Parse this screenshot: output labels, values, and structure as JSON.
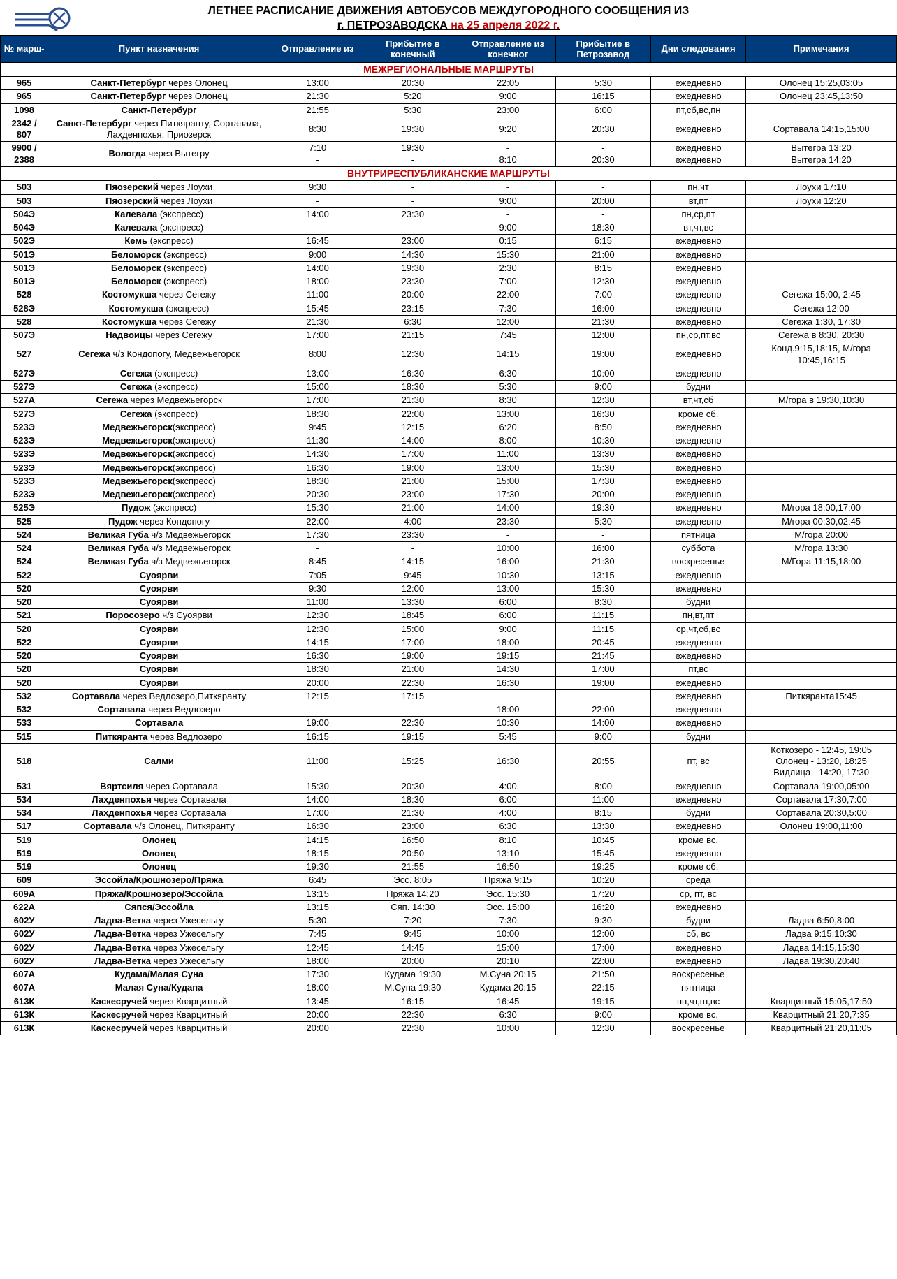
{
  "title": {
    "line1": "ЛЕТНЕЕ РАСПИСАНИЕ ДВИЖЕНИЯ АВТОБУСОВ МЕЖДУГОРОДНОГО СООБЩЕНИЯ ИЗ",
    "line2_prefix": "г. ПЕТРОЗАВОДСКА ",
    "line2_date": "на 25 апреля 2022 г."
  },
  "columns": [
    "№ марш-",
    "Пункт назначения",
    "Отправление из",
    "Прибытие в конечный",
    "Отправление из конечног",
    "Прибытие в Петрозавод",
    "Дни следования",
    "Примечания"
  ],
  "logo": {
    "color": "#2b4f8f"
  },
  "sections": [
    {
      "title": "МЕЖРЕГИОНАЛЬНЫЕ МАРШРУТЫ",
      "rows": [
        {
          "num": "965",
          "dest": "Санкт-Петербург",
          "via": " через Олонец",
          "dep": "13:00",
          "arr": "20:30",
          "dep2": "22:05",
          "arr2": "5:30",
          "days": "ежедневно",
          "notes": "Олонец 15:25,03:05"
        },
        {
          "num": "965",
          "dest": "Санкт-Петербург",
          "via": " через Олонец",
          "dep": "21:30",
          "arr": "5:20",
          "dep2": "9:00",
          "arr2": "16:15",
          "days": "ежедневно",
          "notes": "Олонец 23:45,13:50"
        },
        {
          "num": "1098",
          "dest": "Санкт-Петербург",
          "via": "",
          "dep": "21:55",
          "arr": "5:30",
          "dep2": "23:00",
          "arr2": "6:00",
          "days": "пт,сб,вс,пн",
          "notes": ""
        },
        {
          "num": "2342 / 807",
          "dest": "Санкт-Петербург",
          "via": " через Питкяранту, Сортавала, Лахденпохья, Приозерск",
          "dep": "8:30",
          "arr": "19:30",
          "dep2": "9:20",
          "arr2": "20:30",
          "days": "ежедневно",
          "notes": "Сортавала 14:15,15:00"
        },
        {
          "num": "9900 / 2388",
          "dest": "Вологда",
          "via": " через Вытегру",
          "dep": "7:10\n-",
          "arr": "19:30\n-",
          "dep2": "-\n8:10",
          "arr2": "-\n20:30",
          "days": "ежедневно\nежедневно",
          "notes": "Вытегра 13:20\nВытегра 14:20"
        }
      ]
    },
    {
      "title": "ВНУТРИРЕСПУБЛИКАНСКИЕ МАРШРУТЫ",
      "rows": [
        {
          "num": "503",
          "dest": "Пяозерский",
          "via": " через Лоухи",
          "dep": "9:30",
          "arr": "-",
          "dep2": "-",
          "arr2": "-",
          "days": "пн,чт",
          "notes": "Лоухи 17:10"
        },
        {
          "num": "503",
          "dest": "Пяозерский",
          "via": " через Лоухи",
          "dep": "-",
          "arr": "-",
          "dep2": "9:00",
          "arr2": "20:00",
          "days": "вт,пт",
          "notes": "Лоухи 12:20"
        },
        {
          "num": "504Э",
          "dest": "Калевала",
          "via": " (экспресс)",
          "dep": "14:00",
          "arr": "23:30",
          "dep2": "-",
          "arr2": "-",
          "days": "пн,ср,пт",
          "notes": ""
        },
        {
          "num": "504Э",
          "dest": "Калевала",
          "via": " (экспресс)",
          "dep": "-",
          "arr": "-",
          "dep2": "9:00",
          "arr2": "18:30",
          "days": "вт,чт,вс",
          "notes": ""
        },
        {
          "num": "502Э",
          "dest": "Кемь",
          "via": " (экспресс)",
          "dep": "16:45",
          "arr": "23:00",
          "dep2": "0:15",
          "arr2": "6:15",
          "days": "ежедневно",
          "notes": ""
        },
        {
          "num": "501Э",
          "dest": "Беломорск",
          "via": " (экспресс)",
          "dep": "9:00",
          "arr": "14:30",
          "dep2": "15:30",
          "arr2": "21:00",
          "days": "ежедневно",
          "notes": ""
        },
        {
          "num": "501Э",
          "dest": "Беломорск",
          "via": " (экспресс)",
          "dep": "14:00",
          "arr": "19:30",
          "dep2": "2:30",
          "arr2": "8:15",
          "days": "ежедневно",
          "notes": ""
        },
        {
          "num": "501Э",
          "dest": "Беломорск",
          "via": " (экспресс)",
          "dep": "18:00",
          "arr": "23:30",
          "dep2": "7:00",
          "arr2": "12:30",
          "days": "ежедневно",
          "notes": ""
        },
        {
          "num": "528",
          "dest": "Костомукша",
          "via": " через Сегежу",
          "dep": "11:00",
          "arr": "20:00",
          "dep2": "22:00",
          "arr2": "7:00",
          "days": "ежедневно",
          "notes": "Сегежа 15:00, 2:45"
        },
        {
          "num": "528Э",
          "dest": "Костомукша",
          "via": " (экспресс)",
          "dep": "15:45",
          "arr": "23:15",
          "dep2": "7:30",
          "arr2": "16:00",
          "days": "ежедневно",
          "notes": "Сегежа 12:00"
        },
        {
          "num": "528",
          "dest": "Костомукша",
          "via": " через Сегежу",
          "dep": "21:30",
          "arr": "6:30",
          "dep2": "12:00",
          "arr2": "21:30",
          "days": "ежедневно",
          "notes": "Сегежа 1:30, 17:30"
        },
        {
          "num": "507Э",
          "dest": "Надвоицы",
          "via": " через Сегежу",
          "dep": "17:00",
          "arr": "21:15",
          "dep2": "7:45",
          "arr2": "12:00",
          "days": "пн,ср,пт,вс",
          "notes": "Сегежа в 8:30, 20:30"
        },
        {
          "num": "527",
          "dest": "Сегежа",
          "via": " ч/з Кондопогу, Медвежьегорск",
          "dep": "8:00",
          "arr": "12:30",
          "dep2": "14:15",
          "arr2": "19:00",
          "days": "ежедневно",
          "notes": "Конд.9:15,18:15, М/гора 10:45,16:15"
        },
        {
          "num": "527Э",
          "dest": "Сегежа",
          "via": " (экспресс)",
          "dep": "13:00",
          "arr": "16:30",
          "dep2": "6:30",
          "arr2": "10:00",
          "days": "ежедневно",
          "notes": ""
        },
        {
          "num": "527Э",
          "dest": "Сегежа",
          "via": " (экспресс)",
          "dep": "15:00",
          "arr": "18:30",
          "dep2": "5:30",
          "arr2": "9:00",
          "days": "будни",
          "notes": ""
        },
        {
          "num": "527А",
          "dest": "Сегежа",
          "via": " через Медвежьегорск",
          "dep": "17:00",
          "arr": "21:30",
          "dep2": "8:30",
          "arr2": "12:30",
          "days": "вт,чт,сб",
          "notes": "М/гора в 19:30,10:30"
        },
        {
          "num": "527Э",
          "dest": "Сегежа",
          "via": " (экспресс)",
          "dep": "18:30",
          "arr": "22:00",
          "dep2": "13:00",
          "arr2": "16:30",
          "days": "кроме сб.",
          "notes": ""
        },
        {
          "num": "523Э",
          "dest": "Медвежьегорск",
          "via": "(экспресс)",
          "dep": "9:45",
          "arr": "12:15",
          "dep2": "6:20",
          "arr2": "8:50",
          "days": "ежедневно",
          "notes": ""
        },
        {
          "num": "523Э",
          "dest": "Медвежьегорск",
          "via": "(экспресс)",
          "dep": "11:30",
          "arr": "14:00",
          "dep2": "8:00",
          "arr2": "10:30",
          "days": "ежедневно",
          "notes": ""
        },
        {
          "num": "523Э",
          "dest": "Медвежьегорск",
          "via": "(экспресс)",
          "dep": "14:30",
          "arr": "17:00",
          "dep2": "11:00",
          "arr2": "13:30",
          "days": "ежедневно",
          "notes": ""
        },
        {
          "num": "523Э",
          "dest": "Медвежьегорск",
          "via": "(экспресс)",
          "dep": "16:30",
          "arr": "19:00",
          "dep2": "13:00",
          "arr2": "15:30",
          "days": "ежедневно",
          "notes": ""
        },
        {
          "num": "523Э",
          "dest": "Медвежьегорск",
          "via": "(экспресс)",
          "dep": "18:30",
          "arr": "21:00",
          "dep2": "15:00",
          "arr2": "17:30",
          "days": "ежедневно",
          "notes": ""
        },
        {
          "num": "523Э",
          "dest": "Медвежьегорск",
          "via": "(экспресс)",
          "dep": "20:30",
          "arr": "23:00",
          "dep2": "17:30",
          "arr2": "20:00",
          "days": "ежедневно",
          "notes": ""
        },
        {
          "num": "525Э",
          "dest": "Пудож",
          "via": " (экспресс)",
          "dep": "15:30",
          "arr": "21:00",
          "dep2": "14:00",
          "arr2": "19:30",
          "days": "ежедневно",
          "notes": "М/гора 18:00,17:00"
        },
        {
          "num": "525",
          "dest": "Пудож",
          "via": " через Кондопогу",
          "dep": "22:00",
          "arr": "4:00",
          "dep2": "23:30",
          "arr2": "5:30",
          "days": "ежедневно",
          "notes": "М/гора 00:30,02:45"
        },
        {
          "num": "524",
          "dest": "Великая Губа",
          "via": " ч/з Медвежьегорск",
          "dep": "17:30",
          "arr": "23:30",
          "dep2": "-",
          "arr2": "-",
          "days": "пятница",
          "notes": "М/гора 20:00"
        },
        {
          "num": "524",
          "dest": "Великая Губа",
          "via": " ч/з Медвежьегорск",
          "dep": "-",
          "arr": "-",
          "dep2": "10:00",
          "arr2": "16:00",
          "days": "суббота",
          "notes": "М/гора 13:30"
        },
        {
          "num": "524",
          "dest": "Великая Губа",
          "via": " ч/з Медвежьегорск",
          "dep": "8:45",
          "arr": "14:15",
          "dep2": "16:00",
          "arr2": "21:30",
          "days": "воскресенье",
          "notes": "М/Гора 11:15,18:00"
        },
        {
          "num": "522",
          "dest": "Суоярви",
          "via": "",
          "dep": "7:05",
          "arr": "9:45",
          "dep2": "10:30",
          "arr2": "13:15",
          "days": "ежедневно",
          "notes": ""
        },
        {
          "num": "520",
          "dest": "Суоярви",
          "via": "",
          "dep": "9:30",
          "arr": "12:00",
          "dep2": "13:00",
          "arr2": "15:30",
          "days": "ежедневно",
          "notes": ""
        },
        {
          "num": "520",
          "dest": "Суоярви",
          "via": "",
          "dep": "11:00",
          "arr": "13:30",
          "dep2": "6:00",
          "arr2": "8:30",
          "days": "будни",
          "notes": ""
        },
        {
          "num": "521",
          "dest": "Поросозеро",
          "via": " ч/з Суоярви",
          "dep": "12:30",
          "arr": "18:45",
          "dep2": "6:00",
          "arr2": "11:15",
          "days": "пн,вт,пт",
          "notes": ""
        },
        {
          "num": "520",
          "dest": "Суоярви",
          "via": "",
          "dep": "12:30",
          "arr": "15:00",
          "dep2": "9:00",
          "arr2": "11:15",
          "days": "ср,чт,сб,вс",
          "notes": ""
        },
        {
          "num": "522",
          "dest": "Суоярви",
          "via": "",
          "dep": "14:15",
          "arr": "17:00",
          "dep2": "18:00",
          "arr2": "20:45",
          "days": "ежедневно",
          "notes": ""
        },
        {
          "num": "520",
          "dest": "Суоярви",
          "via": "",
          "dep": "16:30",
          "arr": "19:00",
          "dep2": "19:15",
          "arr2": "21:45",
          "days": "ежедневно",
          "notes": ""
        },
        {
          "num": "520",
          "dest": "Суоярви",
          "via": "",
          "dep": "18:30",
          "arr": "21:00",
          "dep2": "14:30",
          "arr2": "17:00",
          "days": "пт,вс",
          "notes": ""
        },
        {
          "num": "520",
          "dest": "Суоярви",
          "via": "",
          "dep": "20:00",
          "arr": "22:30",
          "dep2": "16:30",
          "arr2": "19:00",
          "days": "ежедневно",
          "notes": ""
        },
        {
          "num": "532",
          "dest": "Сортавала",
          "via": " через Ведлозеро,Питкяранту",
          "dep": "12:15",
          "arr": "17:15",
          "dep2": "",
          "arr2": "",
          "days": "ежедневно",
          "notes": "Питкяранта15:45"
        },
        {
          "num": "532",
          "dest": "Сортавала",
          "via": " через Ведлозеро",
          "dep": "-",
          "arr": "-",
          "dep2": "18:00",
          "arr2": "22:00",
          "days": "ежедневно",
          "notes": ""
        },
        {
          "num": "533",
          "dest": "Сортавала",
          "via": "",
          "dep": "19:00",
          "arr": "22:30",
          "dep2": "10:30",
          "arr2": "14:00",
          "days": "ежедневно",
          "notes": ""
        },
        {
          "num": "515",
          "dest": "Питкяранта",
          "via": " через Ведлозеро",
          "dep": "16:15",
          "arr": "19:15",
          "dep2": "5:45",
          "arr2": "9:00",
          "days": "будни",
          "notes": ""
        },
        {
          "num": "518",
          "dest": "Салми",
          "via": "",
          "dep": "11:00",
          "arr": "15:25",
          "dep2": "16:30",
          "arr2": "20:55",
          "days": "пт, вс",
          "notes": "Коткозеро - 12:45, 19:05\nОлонец - 13:20, 18:25\nВидлица - 14:20, 17:30"
        },
        {
          "num": "531",
          "dest": "Вяртсиля",
          "via": " через Сортавала",
          "dep": "15:30",
          "arr": "20:30",
          "dep2": "4:00",
          "arr2": "8:00",
          "days": "ежедневно",
          "notes": "Сортавала 19:00,05:00"
        },
        {
          "num": "534",
          "dest": "Лахденпохья",
          "via": " через Сортавала",
          "dep": "14:00",
          "arr": "18:30",
          "dep2": "6:00",
          "arr2": "11:00",
          "days": "ежедневно",
          "notes": "Сортавала 17:30,7:00"
        },
        {
          "num": "534",
          "dest": "Лахденпохья",
          "via": " через Сортавала",
          "dep": "17:00",
          "arr": "21:30",
          "dep2": "4:00",
          "arr2": "8:15",
          "days": "будни",
          "notes": "Сортавала 20:30,5:00"
        },
        {
          "num": "517",
          "dest": "Сортавала",
          "via": " ч/з Олонец, Питкяранту",
          "dep": "16:30",
          "arr": "23:00",
          "dep2": "6:30",
          "arr2": "13:30",
          "days": "ежедневно",
          "notes": "Олонец 19:00,11:00"
        },
        {
          "num": "519",
          "dest": "Олонец",
          "via": "",
          "dep": "14:15",
          "arr": "16:50",
          "dep2": "8:10",
          "arr2": "10:45",
          "days": "кроме вс.",
          "notes": ""
        },
        {
          "num": "519",
          "dest": "Олонец",
          "via": "",
          "dep": "18:15",
          "arr": "20:50",
          "dep2": "13:10",
          "arr2": "15:45",
          "days": "ежедневно",
          "notes": ""
        },
        {
          "num": "519",
          "dest": "Олонец",
          "via": "",
          "dep": "19:30",
          "arr": "21:55",
          "dep2": "16:50",
          "arr2": "19:25",
          "days": "кроме сб.",
          "notes": ""
        },
        {
          "num": "609",
          "dest": "Эссойла/Крошнозеро/Пряжа",
          "via": "",
          "dep": "6:45",
          "arr": "Эсс. 8:05",
          "dep2": "Пряжа 9:15",
          "arr2": "10:20",
          "days": "среда",
          "notes": ""
        },
        {
          "num": "609А",
          "dest": "Пряжа/Крошнозеро/Эссойла",
          "via": "",
          "dep": "13:15",
          "arr": "Пряжа 14:20",
          "dep2": "Эсс. 15:30",
          "arr2": "17:20",
          "days": "ср, пт, вс",
          "notes": ""
        },
        {
          "num": "622А",
          "dest": "Сяпся/Эссойла",
          "via": "",
          "dep": "13:15",
          "arr": "Сяп. 14:30",
          "dep2": "Эсс. 15:00",
          "arr2": "16:20",
          "days": "ежедневно",
          "notes": ""
        },
        {
          "num": "602У",
          "dest": "Ладва-Ветка",
          "via": " через Ужесельгу",
          "dep": "5:30",
          "arr": "7:20",
          "dep2": "7:30",
          "arr2": "9:30",
          "days": "будни",
          "notes": "Ладва 6:50,8:00"
        },
        {
          "num": "602У",
          "dest": "Ладва-Ветка",
          "via": " через Ужесельгу",
          "dep": "7:45",
          "arr": "9:45",
          "dep2": "10:00",
          "arr2": "12:00",
          "days": "сб, вс",
          "notes": "Ладва 9:15,10:30"
        },
        {
          "num": "602У",
          "dest": "Ладва-Ветка",
          "via": " через Ужесельгу",
          "dep": "12:45",
          "arr": "14:45",
          "dep2": "15:00",
          "arr2": "17:00",
          "days": "ежедневно",
          "notes": "Ладва 14:15,15:30"
        },
        {
          "num": "602У",
          "dest": "Ладва-Ветка",
          "via": " через Ужесельгу",
          "dep": "18:00",
          "arr": "20:00",
          "dep2": "20:10",
          "arr2": "22:00",
          "days": "ежедневно",
          "notes": "Ладва 19:30,20:40"
        },
        {
          "num": "607А",
          "dest": "Кудама/Малая Суна",
          "via": "",
          "dep": "17:30",
          "arr": "Кудама 19:30",
          "dep2": "М.Суна 20:15",
          "arr2": "21:50",
          "days": "воскресенье",
          "notes": ""
        },
        {
          "num": "607А",
          "dest": "Малая Суна/Кудапа",
          "via": "",
          "dep": "18:00",
          "arr": "М.Суна 19:30",
          "dep2": "Кудама 20:15",
          "arr2": "22:15",
          "days": "пятница",
          "notes": ""
        },
        {
          "num": "613К",
          "dest": "Каскесручей",
          "via": " через Кварцитный",
          "dep": "13:45",
          "arr": "16:15",
          "dep2": "16:45",
          "arr2": "19:15",
          "days": "пн,чт,пт,вс",
          "notes": "Кварцитный 15:05,17:50"
        },
        {
          "num": "613К",
          "dest": "Каскесручей",
          "via": " через Кварцитный",
          "dep": "20:00",
          "arr": "22:30",
          "dep2": "6:30",
          "arr2": "9:00",
          "days": "кроме вс.",
          "notes": "Кварцитный 21:20,7:35"
        },
        {
          "num": "613К",
          "dest": "Каскесручей",
          "via": " через Кварцитный",
          "dep": "20:00",
          "arr": "22:30",
          "dep2": "10:00",
          "arr2": "12:30",
          "days": "воскресенье",
          "notes": "Кварцитный 21:20,11:05"
        }
      ]
    }
  ]
}
